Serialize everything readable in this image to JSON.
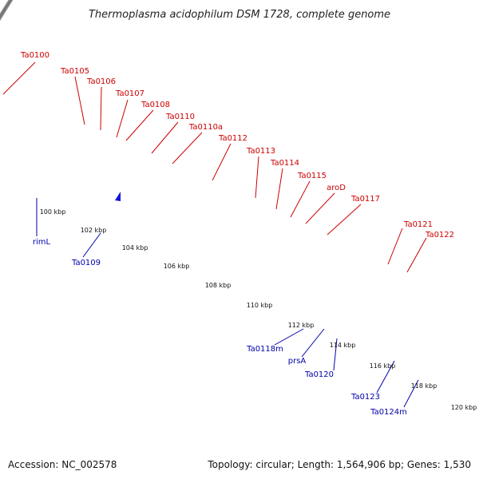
{
  "title": "Thermoplasma acidophilum DSM 1728, complete genome",
  "footer": {
    "accession": "Accession: NC_002578",
    "topology": "Topology: circular; Length: 1,564,906 bp; Genes: 1,530"
  },
  "colors": {
    "forward_label": "#cc0000",
    "reverse_label": "#0000aa",
    "backbone": "#8a8a8a",
    "tick": "#008800",
    "red": "#ee1111",
    "blue": "#1111dd",
    "cyan": "#11eeee",
    "steelblue": "#4a82b8",
    "pink": "#ee8888",
    "orange": "#ff9900",
    "gray": "#c8c8c8",
    "slate": "#7766cc",
    "navy": "#3d3a80",
    "olive": "#bbbb88"
  },
  "scale_labels": [
    "100 kbp",
    "102 kbp",
    "104 kbp",
    "106 kbp",
    "108 kbp",
    "110 kbp",
    "112 kbp",
    "114 kbp",
    "116 kbp",
    "118 kbp",
    "120 kbp"
  ],
  "forward_labels": [
    "Ta0100",
    "Ta0105",
    "Ta0106",
    "Ta0107",
    "Ta0108",
    "Ta0110",
    "Ta0110a",
    "Ta0112",
    "Ta0113",
    "Ta0114",
    "Ta0115",
    "aroD",
    "Ta0117",
    "Ta0121",
    "Ta0122"
  ],
  "reverse_labels": [
    "rimL",
    "Ta0109",
    "Ta0118m",
    "prsA",
    "Ta0120",
    "Ta0123",
    "Ta0124m"
  ]
}
